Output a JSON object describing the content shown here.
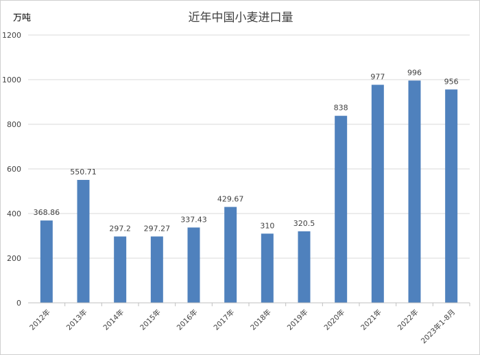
{
  "chart_data": {
    "type": "bar",
    "title": "近年中国小麦进口量",
    "ylabel": "万吨",
    "xlabel": "",
    "ylim": [
      0,
      1200
    ],
    "yticks": [
      0,
      200,
      400,
      600,
      800,
      1000,
      1200
    ],
    "grid": true,
    "categories": [
      "2012年",
      "2013年",
      "2014年",
      "2015年",
      "2016年",
      "2017年",
      "2018年",
      "2019年",
      "2020年",
      "2021年",
      "2022年",
      "2023年1-8月"
    ],
    "values": [
      368.86,
      550.71,
      297.2,
      297.27,
      337.43,
      429.67,
      310,
      320.5,
      838,
      977,
      996,
      956
    ],
    "value_labels": [
      "368.86",
      "550.71",
      "297.2",
      "297.27",
      "337.43",
      "429.67",
      "310",
      "320.5",
      "838",
      "977",
      "996",
      "956"
    ],
    "bar_color": "#4f81bd",
    "grid_color": "#d9d9d9"
  }
}
